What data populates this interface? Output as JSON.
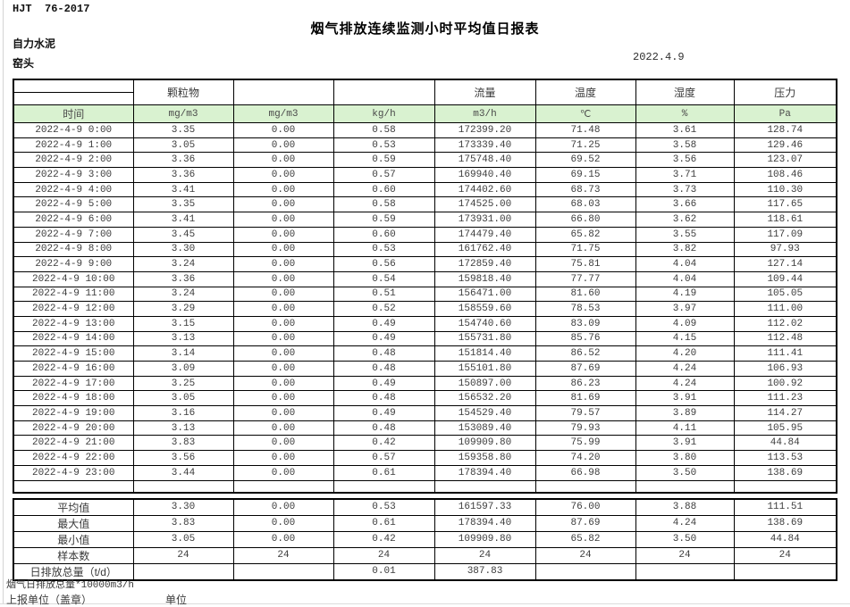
{
  "page": {
    "doc_code": "HJT  76-2017",
    "title": "烟气排放连续监测小时平均值日报表",
    "company": "自力水泥",
    "station": "窑头",
    "date": "2022.4.9"
  },
  "colors": {
    "header_green": "#d9f2d0",
    "border": "#000000"
  },
  "table": {
    "group_headers": [
      "",
      "颗粒物",
      "",
      "",
      "流量",
      "温度",
      "湿度",
      "压力"
    ],
    "unit_row": [
      "时间",
      "mg/m3",
      "mg/m3",
      "kg/h",
      "m3/h",
      "℃",
      "%",
      "Pa"
    ],
    "rows": [
      [
        "2022-4-9 0:00",
        "3.35",
        "0.00",
        "0.58",
        "172399.20",
        "71.48",
        "3.61",
        "128.74"
      ],
      [
        "2022-4-9 1:00",
        "3.05",
        "0.00",
        "0.53",
        "173339.40",
        "71.25",
        "3.58",
        "129.46"
      ],
      [
        "2022-4-9 2:00",
        "3.36",
        "0.00",
        "0.59",
        "175748.40",
        "69.52",
        "3.56",
        "123.07"
      ],
      [
        "2022-4-9 3:00",
        "3.36",
        "0.00",
        "0.57",
        "169940.40",
        "69.15",
        "3.71",
        "108.46"
      ],
      [
        "2022-4-9 4:00",
        "3.41",
        "0.00",
        "0.60",
        "174402.60",
        "68.73",
        "3.73",
        "110.30"
      ],
      [
        "2022-4-9 5:00",
        "3.35",
        "0.00",
        "0.58",
        "174525.00",
        "68.03",
        "3.66",
        "117.65"
      ],
      [
        "2022-4-9 6:00",
        "3.41",
        "0.00",
        "0.59",
        "173931.00",
        "66.80",
        "3.62",
        "118.61"
      ],
      [
        "2022-4-9 7:00",
        "3.45",
        "0.00",
        "0.60",
        "174479.40",
        "65.82",
        "3.55",
        "117.09"
      ],
      [
        "2022-4-9 8:00",
        "3.30",
        "0.00",
        "0.53",
        "161762.40",
        "71.75",
        "3.82",
        "97.93"
      ],
      [
        "2022-4-9 9:00",
        "3.24",
        "0.00",
        "0.56",
        "172859.40",
        "75.81",
        "4.04",
        "127.14"
      ],
      [
        "2022-4-9 10:00",
        "3.36",
        "0.00",
        "0.54",
        "159818.40",
        "77.77",
        "4.04",
        "109.44"
      ],
      [
        "2022-4-9 11:00",
        "3.24",
        "0.00",
        "0.51",
        "156471.00",
        "81.60",
        "4.19",
        "105.05"
      ],
      [
        "2022-4-9 12:00",
        "3.29",
        "0.00",
        "0.52",
        "158559.60",
        "78.53",
        "3.97",
        "111.00"
      ],
      [
        "2022-4-9 13:00",
        "3.15",
        "0.00",
        "0.49",
        "154740.60",
        "83.09",
        "4.09",
        "112.02"
      ],
      [
        "2022-4-9 14:00",
        "3.13",
        "0.00",
        "0.49",
        "155731.80",
        "85.76",
        "4.15",
        "112.48"
      ],
      [
        "2022-4-9 15:00",
        "3.14",
        "0.00",
        "0.48",
        "151814.40",
        "86.52",
        "4.20",
        "111.41"
      ],
      [
        "2022-4-9 16:00",
        "3.09",
        "0.00",
        "0.48",
        "155101.80",
        "87.69",
        "4.24",
        "106.93"
      ],
      [
        "2022-4-9 17:00",
        "3.25",
        "0.00",
        "0.49",
        "150897.00",
        "86.23",
        "4.24",
        "100.92"
      ],
      [
        "2022-4-9 18:00",
        "3.05",
        "0.00",
        "0.48",
        "156532.20",
        "81.69",
        "3.91",
        "111.23"
      ],
      [
        "2022-4-9 19:00",
        "3.16",
        "0.00",
        "0.49",
        "154529.40",
        "79.57",
        "3.89",
        "114.27"
      ],
      [
        "2022-4-9 20:00",
        "3.13",
        "0.00",
        "0.48",
        "153089.40",
        "79.93",
        "4.11",
        "105.95"
      ],
      [
        "2022-4-9 21:00",
        "3.83",
        "0.00",
        "0.42",
        "109909.80",
        "75.99",
        "3.91",
        "44.84"
      ],
      [
        "2022-4-9 22:00",
        "3.56",
        "0.00",
        "0.57",
        "159358.80",
        "74.20",
        "3.80",
        "113.53"
      ],
      [
        "2022-4-9 23:00",
        "3.44",
        "0.00",
        "0.61",
        "178394.40",
        "66.98",
        "3.50",
        "138.69"
      ]
    ],
    "summary_rows": [
      [
        "平均值",
        "3.30",
        "0.00",
        "0.53",
        "161597.33",
        "76.00",
        "3.88",
        "111.51"
      ],
      [
        "最大值",
        "3.83",
        "0.00",
        "0.61",
        "178394.40",
        "87.69",
        "4.24",
        "138.69"
      ],
      [
        "最小值",
        "3.05",
        "0.00",
        "0.42",
        "109909.80",
        "65.82",
        "3.50",
        "44.84"
      ],
      [
        "样本数",
        "24",
        "24",
        "24",
        "24",
        "24",
        "24",
        "24"
      ],
      [
        "日排放总量（t/d）",
        "",
        "",
        "0.01",
        "387.83",
        "",
        "",
        ""
      ]
    ]
  },
  "footer": {
    "note": "烟气日排放总量*10000m3/h",
    "report_unit_label": "上报单位（盖章）",
    "unit_label": "单位"
  }
}
